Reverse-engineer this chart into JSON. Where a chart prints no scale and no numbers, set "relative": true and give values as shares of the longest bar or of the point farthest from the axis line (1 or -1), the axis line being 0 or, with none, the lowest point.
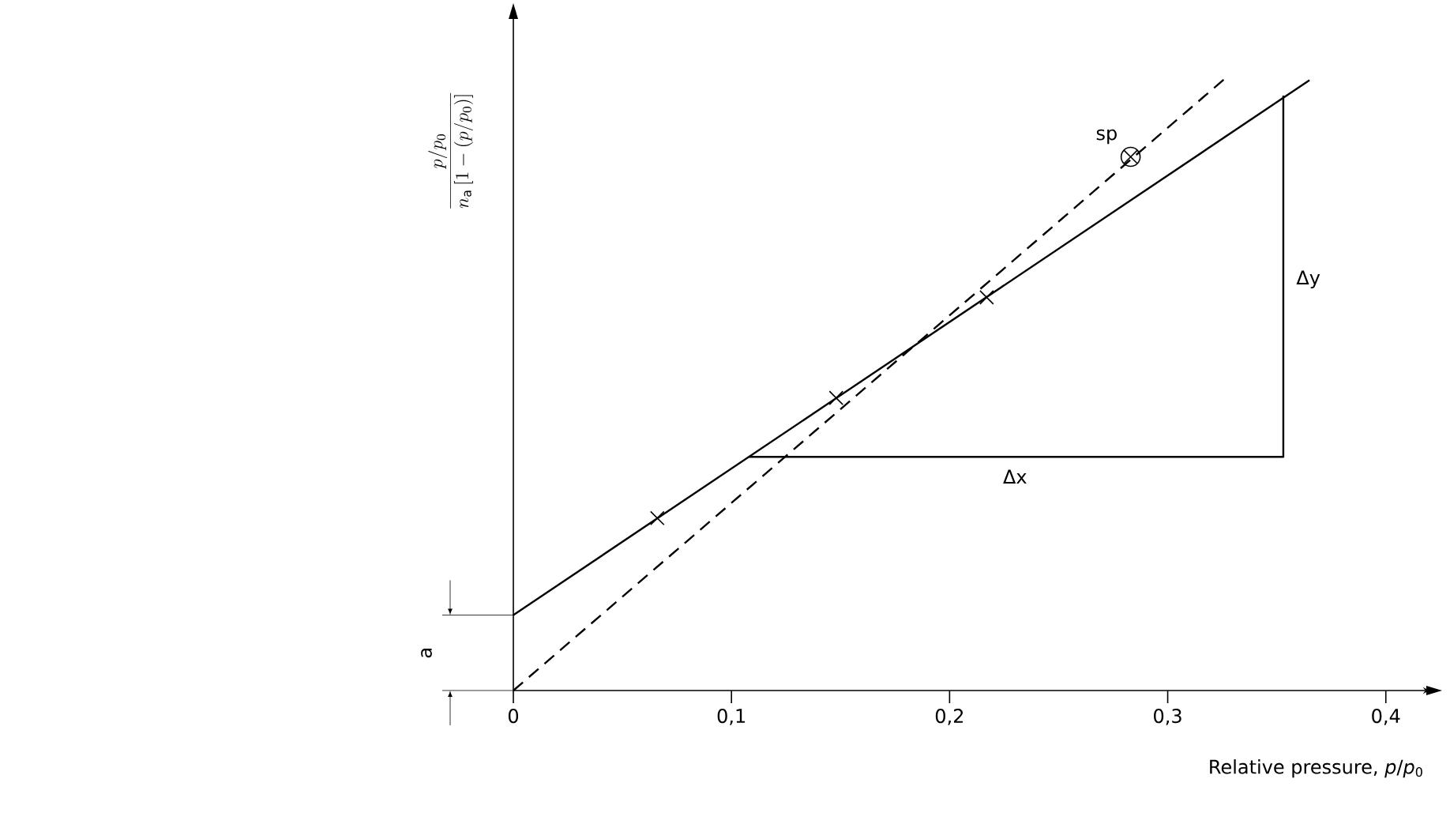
{
  "chart_data": {
    "type": "line",
    "relative": true,
    "xlabel": "Relative pressure, *p*/*p*$_{0}$",
    "ylabel": "\\frac{p/p_0}{n_{\\mathrm{a}}\\,[1-(p/p_0)]}",
    "xlim": [
      0,
      0.42
    ],
    "xticks": [
      0,
      {
        "value": 0.1,
        "label": "0,1"
      },
      {
        "value": 0.2,
        "label": "0,2"
      },
      {
        "value": 0.3,
        "label": "0,3"
      },
      {
        "value": 0.4,
        "label": "0,4"
      }
    ],
    "grid": false,
    "series": [
      {
        "color": "#000000",
        "line_style": "solid",
        "x": [
          0,
          0.365
        ],
        "values": [
          0.123,
          0.995
        ]
      },
      {
        "color": "#000000",
        "line_style": "dashed",
        "x": [
          0,
          0.327
        ],
        "values": [
          0,
          1.0
        ]
      },
      {
        "color": "#000000",
        "line_style": "solid",
        "x": [
          0.108,
          0.353,
          0.353
        ],
        "values": [
          0.381,
          0.381,
          0.97
        ]
      },
      {
        "type": "scatter",
        "color": "#000000",
        "marker": "cross",
        "x": [
          0.066,
          0.148,
          0.217
        ],
        "values": [
          0.281,
          0.477,
          0.641
        ]
      },
      {
        "type": "scatter",
        "color": "#000000",
        "marker": "cross",
        "x": [
          0.283
        ],
        "values": [
          0.87
        ]
      }
    ],
    "annotations": [
      {
        "text": "sp",
        "x": 0.283,
        "y": 0.87
      },
      {
        "text": "Δx",
        "x": 0.23,
        "y": 0.381
      },
      {
        "text": "Δy",
        "x": 0.353,
        "y": 0.67
      },
      "a"
    ]
  }
}
